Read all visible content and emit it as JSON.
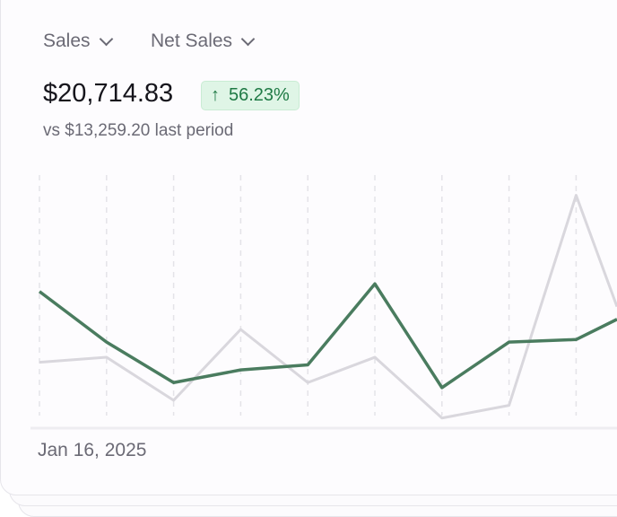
{
  "header": {
    "metric_dropdown": "Sales",
    "submetric_dropdown": "Net Sales",
    "total": "$20,714.83",
    "change_badge": "56.23%",
    "change_direction": "up",
    "comparison": "vs $13,259.20 last period"
  },
  "x_axis": {
    "start_label": "Jan 16, 2025"
  },
  "colors": {
    "current": "#4a7c5f",
    "previous": "#d9d7dd",
    "badge_bg": "#dff5e6",
    "badge_text": "#1f7a45"
  },
  "chart_data": {
    "type": "line",
    "x_labels": [
      "Jan 16, 2025"
    ],
    "ylim": [
      0,
      100
    ],
    "grid": "vertical dashed",
    "series": [
      {
        "role": "current",
        "values": [
          54,
          34,
          18,
          23,
          25,
          57,
          16,
          34,
          35,
          43
        ]
      },
      {
        "role": "previous",
        "values": [
          26,
          28,
          11,
          39,
          18,
          28,
          4,
          9,
          92,
          48
        ]
      }
    ]
  }
}
